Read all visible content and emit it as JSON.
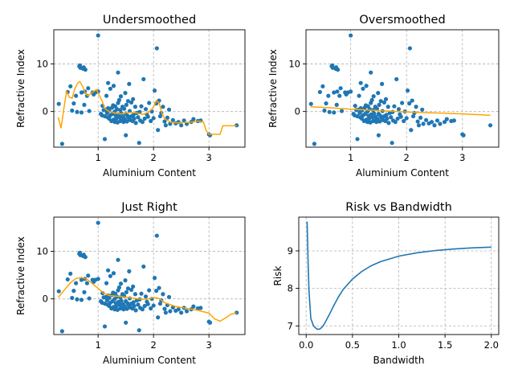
{
  "colors": {
    "points": "#1f77b4",
    "smooth": "#ffa500",
    "risk": "#1f77b4",
    "grid": "#b0b0b0"
  },
  "scatter_points": [
    [
      0.29,
      1.6
    ],
    [
      0.35,
      -6.8
    ],
    [
      0.45,
      4.1
    ],
    [
      0.5,
      5.3
    ],
    [
      0.53,
      0.2
    ],
    [
      0.56,
      1.7
    ],
    [
      0.6,
      3.3
    ],
    [
      0.62,
      -0.1
    ],
    [
      0.66,
      9.5
    ],
    [
      0.67,
      9.7
    ],
    [
      0.68,
      9.2
    ],
    [
      0.7,
      4.0
    ],
    [
      0.7,
      -0.2
    ],
    [
      0.73,
      9.0
    ],
    [
      0.74,
      9.3
    ],
    [
      0.75,
      1.4
    ],
    [
      0.76,
      4.2
    ],
    [
      0.77,
      8.8
    ],
    [
      0.8,
      3.3
    ],
    [
      0.82,
      4.9
    ],
    [
      0.84,
      0.1
    ],
    [
      0.9,
      4.0
    ],
    [
      0.92,
      3.6
    ],
    [
      0.95,
      4.0
    ],
    [
      1.0,
      16.0
    ],
    [
      1.0,
      4.2
    ],
    [
      1.05,
      -0.5
    ],
    [
      1.07,
      -0.8
    ],
    [
      1.08,
      1.2
    ],
    [
      1.1,
      0.3
    ],
    [
      1.12,
      -5.8
    ],
    [
      1.12,
      -1.0
    ],
    [
      1.14,
      0.4
    ],
    [
      1.15,
      3.3
    ],
    [
      1.16,
      -0.3
    ],
    [
      1.17,
      -1.2
    ],
    [
      1.18,
      6.0
    ],
    [
      1.18,
      0.7
    ],
    [
      1.2,
      -1.5
    ],
    [
      1.2,
      0.2
    ],
    [
      1.22,
      4.8
    ],
    [
      1.22,
      -0.8
    ],
    [
      1.24,
      -2.0
    ],
    [
      1.25,
      0.8
    ],
    [
      1.26,
      -0.5
    ],
    [
      1.27,
      1.3
    ],
    [
      1.28,
      -1.7
    ],
    [
      1.28,
      5.4
    ],
    [
      1.3,
      0.0
    ],
    [
      1.3,
      -2.2
    ],
    [
      1.31,
      1.1
    ],
    [
      1.32,
      -0.9
    ],
    [
      1.33,
      -1.5
    ],
    [
      1.34,
      0.5
    ],
    [
      1.35,
      -2.3
    ],
    [
      1.36,
      8.2
    ],
    [
      1.36,
      1.8
    ],
    [
      1.37,
      -0.6
    ],
    [
      1.38,
      2.4
    ],
    [
      1.39,
      -1.2
    ],
    [
      1.4,
      -2.0
    ],
    [
      1.4,
      0.3
    ],
    [
      1.41,
      3.2
    ],
    [
      1.42,
      -0.4
    ],
    [
      1.43,
      -1.9
    ],
    [
      1.44,
      1.0
    ],
    [
      1.45,
      -1.1
    ],
    [
      1.46,
      -2.2
    ],
    [
      1.47,
      0.6
    ],
    [
      1.48,
      -1.6
    ],
    [
      1.49,
      3.9
    ],
    [
      1.5,
      -0.5
    ],
    [
      1.5,
      -5.0
    ],
    [
      1.51,
      1.4
    ],
    [
      1.52,
      -2.1
    ],
    [
      1.53,
      -0.9
    ],
    [
      1.54,
      2.2
    ],
    [
      1.55,
      -1.3
    ],
    [
      1.56,
      5.8
    ],
    [
      1.57,
      0.1
    ],
    [
      1.58,
      -1.8
    ],
    [
      1.6,
      -1.0
    ],
    [
      1.6,
      1.9
    ],
    [
      1.62,
      -2.0
    ],
    [
      1.63,
      2.6
    ],
    [
      1.64,
      -0.7
    ],
    [
      1.65,
      -1.5
    ],
    [
      1.67,
      1.0
    ],
    [
      1.68,
      -2.4
    ],
    [
      1.7,
      -0.3
    ],
    [
      1.72,
      -1.2
    ],
    [
      1.74,
      -6.6
    ],
    [
      1.75,
      -0.1
    ],
    [
      1.76,
      -1.9
    ],
    [
      1.78,
      1.1
    ],
    [
      1.8,
      -2.2
    ],
    [
      1.82,
      6.8
    ],
    [
      1.84,
      -1.5
    ],
    [
      1.86,
      0.5
    ],
    [
      1.88,
      -0.6
    ],
    [
      1.9,
      -1.1
    ],
    [
      1.92,
      1.8
    ],
    [
      1.95,
      -2.0
    ],
    [
      1.97,
      0.0
    ],
    [
      2.0,
      -1.4
    ],
    [
      2.02,
      4.4
    ],
    [
      2.05,
      1.7
    ],
    [
      2.06,
      13.3
    ],
    [
      2.08,
      -3.9
    ],
    [
      2.1,
      2.3
    ],
    [
      2.12,
      -1.0
    ],
    [
      2.14,
      -0.3
    ],
    [
      2.17,
      1.0
    ],
    [
      2.2,
      -2.1
    ],
    [
      2.22,
      -2.9
    ],
    [
      2.25,
      -1.3
    ],
    [
      2.28,
      0.4
    ],
    [
      2.3,
      -2.6
    ],
    [
      2.35,
      -1.8
    ],
    [
      2.4,
      -2.5
    ],
    [
      2.45,
      -2.2
    ],
    [
      2.5,
      -2.9
    ],
    [
      2.55,
      -1.9
    ],
    [
      2.6,
      -2.6
    ],
    [
      2.68,
      -2.2
    ],
    [
      2.72,
      -1.6
    ],
    [
      2.8,
      -2.0
    ],
    [
      2.85,
      -1.9
    ],
    [
      3.0,
      -4.8
    ],
    [
      3.02,
      -5.0
    ],
    [
      3.5,
      -2.9
    ]
  ],
  "chart_data": [
    {
      "type": "scatter",
      "title": "Undersmoothed",
      "xlabel": "Aluminium Content",
      "ylabel": "Refractive Index",
      "xlim": [
        0.2,
        3.65
      ],
      "ylim": [
        -7.5,
        17.2
      ],
      "xticks": [
        1,
        2,
        3
      ],
      "yticks": [
        0,
        10
      ],
      "grid": true,
      "series_points": "scatter_points",
      "curve": {
        "x": [
          0.28,
          0.33,
          0.38,
          0.43,
          0.48,
          0.53,
          0.58,
          0.63,
          0.67,
          0.72,
          0.77,
          0.82,
          0.87,
          0.92,
          0.97,
          1.02,
          1.07,
          1.12,
          1.2,
          1.3,
          1.4,
          1.5,
          1.6,
          1.7,
          1.8,
          1.9,
          1.95,
          2.0,
          2.05,
          2.1,
          2.15,
          2.2,
          2.3,
          2.4,
          2.5,
          2.6,
          2.7,
          2.8,
          2.9,
          2.95,
          3.0,
          3.05,
          3.1,
          3.2,
          3.25,
          3.3,
          3.4,
          3.5
        ],
        "y": [
          -1.2,
          -3.5,
          0.5,
          4.2,
          3.0,
          2.8,
          4.8,
          6.0,
          6.3,
          5.3,
          3.8,
          3.3,
          3.8,
          4.2,
          4.6,
          3.4,
          2.3,
          0.6,
          0.0,
          -0.3,
          -0.5,
          -0.3,
          -0.2,
          -0.3,
          -0.6,
          -0.2,
          0.3,
          0.9,
          2.3,
          1.8,
          -0.3,
          -1.5,
          -2.2,
          -2.4,
          -2.3,
          -2.3,
          -2.2,
          -2.0,
          -2.2,
          -4.0,
          -4.8,
          -4.8,
          -4.8,
          -4.8,
          -3.0,
          -3.0,
          -3.0,
          -3.0
        ]
      }
    },
    {
      "type": "scatter",
      "title": "Oversmoothed",
      "xlabel": "Aluminium Content",
      "ylabel": "Refractive Index",
      "xlim": [
        0.2,
        3.65
      ],
      "ylim": [
        -7.5,
        17.2
      ],
      "xticks": [
        1,
        2,
        3
      ],
      "yticks": [
        0,
        10
      ],
      "grid": true,
      "series_points": "scatter_points",
      "curve": {
        "x": [
          0.28,
          0.6,
          1.0,
          1.5,
          2.0,
          2.5,
          3.0,
          3.5
        ],
        "y": [
          1.0,
          0.8,
          0.5,
          0.2,
          -0.1,
          -0.3,
          -0.5,
          -0.8
        ]
      }
    },
    {
      "type": "scatter",
      "title": "Just Right",
      "xlabel": "Aluminium Content",
      "ylabel": "Refractive Index",
      "xlim": [
        0.2,
        3.65
      ],
      "ylim": [
        -7.5,
        17.2
      ],
      "xticks": [
        1,
        2,
        3
      ],
      "yticks": [
        0,
        10
      ],
      "grid": true,
      "series_points": "scatter_points",
      "curve": {
        "x": [
          0.28,
          0.4,
          0.5,
          0.6,
          0.7,
          0.8,
          0.9,
          1.0,
          1.1,
          1.2,
          1.4,
          1.6,
          1.8,
          1.9,
          2.0,
          2.1,
          2.2,
          2.4,
          2.6,
          2.8,
          3.0,
          3.1,
          3.2,
          3.3,
          3.4,
          3.5
        ],
        "y": [
          0.3,
          2.0,
          3.4,
          4.3,
          4.5,
          4.1,
          3.2,
          2.2,
          1.2,
          0.7,
          0.5,
          0.2,
          -0.1,
          0.0,
          0.3,
          0.1,
          -0.8,
          -1.6,
          -2.0,
          -2.4,
          -3.0,
          -4.2,
          -4.7,
          -4.0,
          -3.2,
          -3.0
        ]
      }
    },
    {
      "type": "line",
      "title": "Risk vs Bandwidth",
      "xlabel": "Bandwidth",
      "ylabel": "Risk",
      "xlim": [
        -0.08,
        2.08
      ],
      "ylim": [
        6.77,
        9.9
      ],
      "xticks": [
        0.0,
        0.5,
        1.0,
        1.5,
        2.0
      ],
      "yticks": [
        7,
        8,
        9
      ],
      "grid": true,
      "x": [
        0.01,
        0.02,
        0.03,
        0.05,
        0.08,
        0.1,
        0.12,
        0.15,
        0.18,
        0.2,
        0.25,
        0.3,
        0.35,
        0.4,
        0.5,
        0.6,
        0.7,
        0.8,
        1.0,
        1.2,
        1.4,
        1.6,
        1.8,
        2.0
      ],
      "y": [
        9.78,
        8.8,
        7.95,
        7.2,
        7.0,
        6.95,
        6.91,
        6.92,
        6.99,
        7.07,
        7.3,
        7.55,
        7.78,
        7.97,
        8.25,
        8.45,
        8.6,
        8.71,
        8.86,
        8.95,
        9.01,
        9.05,
        9.08,
        9.1
      ]
    }
  ]
}
